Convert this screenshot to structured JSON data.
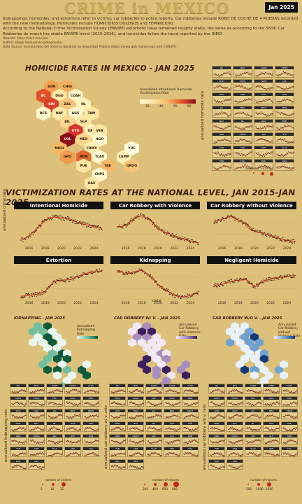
{
  "header": {
    "title": "CRIME in MEXICO",
    "date_badge": "Jan 2025"
  },
  "intro": {
    "line1": "Kidnappings, homicides, and extortions refer to victims; car robberies to police reports. Car robberies include ROBO DE COCHE DE 4 RUEDAS recorded with the new methodology. Homicides include HOMICIDIOS DOLOSOS and FEMINICIDIO.",
    "line2": "According to the National Crime Victimization Survey (ENVIPE) extortions have remained roughly stabe, the same as according to the SNSP. Car Robberies do match the stable ENVIPE trend (2015-2016), and homicides follow the trend reported by the INEGI",
    "website": "Website: https://elcri.men/en/",
    "author": "Author: Diego Valle-Jones @diegovalle",
    "source": "Data Source: Secretariado del Sistema Nacional de Seguridad Pública (https://www.gob.mx/sesnsp) and CONAPO"
  },
  "homicide_map": {
    "title": "HOMICIDE RATES IN MEXICO - JAN 2025",
    "legend_title": "Annualized Intentional Homicide Victimization Rate",
    "legend_ticks": [
      "20",
      "40",
      "60",
      "80"
    ],
    "states": [
      {
        "code": "SON",
        "color": "#f2a050"
      },
      {
        "code": "CHIH",
        "color": "#f2b060"
      },
      {
        "code": "BC",
        "color": "#e0502a"
      },
      {
        "code": "DGO",
        "color": "#fce9a8"
      },
      {
        "code": "COAH",
        "color": "#fef5c8"
      },
      {
        "code": "SIN",
        "color": "#d8422a"
      },
      {
        "code": "ZAC",
        "color": "#f6c478"
      },
      {
        "code": "NL",
        "color": "#fdf0b8"
      },
      {
        "code": "BCS",
        "color": "#fef6cc"
      },
      {
        "code": "NAY",
        "color": "#fde9a8"
      },
      {
        "code": "AGS",
        "color": "#fef6cc"
      },
      {
        "code": "SLP",
        "color": "#fce6a4"
      },
      {
        "code": "TAM",
        "color": "#fce6a4"
      },
      {
        "code": "JAL",
        "color": "#f9d68c"
      },
      {
        "code": "GTO",
        "color": "#d8342a"
      },
      {
        "code": "QRO",
        "color": "#fdf0b8"
      },
      {
        "code": "VER",
        "color": "#fce6a4"
      },
      {
        "code": "COL",
        "color": "#8c0d1a"
      },
      {
        "code": "MEX",
        "color": "#f9d68c"
      },
      {
        "code": "HGO",
        "color": "#fef6cc"
      },
      {
        "code": "MICH",
        "color": "#f6b866"
      },
      {
        "code": "CDMX",
        "color": "#fdeeb4"
      },
      {
        "code": "TLAX",
        "color": "#fef6cc"
      },
      {
        "code": "CAMP",
        "color": "#fdeeb4"
      },
      {
        "code": "YUC",
        "color": "#fffadc"
      },
      {
        "code": "GRO",
        "color": "#f29c50"
      },
      {
        "code": "MOR",
        "color": "#e26a30"
      },
      {
        "code": "PUE",
        "color": "#fce6a4"
      },
      {
        "code": "TAB",
        "color": "#f6b866"
      },
      {
        "code": "QROO",
        "color": "#f6c478"
      },
      {
        "code": "CHPS",
        "color": "#fef6cc"
      },
      {
        "code": "OAX",
        "color": "#fce6a4"
      }
    ]
  },
  "homicide_small_multiples": {
    "ylabel": "annualized homicide rate",
    "states": [
      "BC",
      "BCS",
      "CAMP",
      "CDMX",
      "CHIH",
      "CHPS",
      "COAH",
      "COL",
      "DGO",
      "GRO",
      "GTO",
      "HGO",
      "JAL",
      "MEX",
      "MICH",
      "MOR",
      "NAY",
      "NL",
      "OAX",
      "PUE",
      "QRO",
      "QROO",
      "SIN",
      "SLP",
      "SON",
      "TAB",
      "TAM",
      "TLAX",
      "VER",
      "YUC",
      "ZAC",
      "AGS"
    ],
    "size_legend_title": "number of victims"
  },
  "national": {
    "title": "VICTIMIZATION RATES AT THE NATIONAL LEVEL, JAN 2015-JAN 2025",
    "ylabel": "annualized crime rate",
    "xlabel": "date",
    "x_ticks": [
      "2016",
      "2018",
      "2020",
      "2022",
      "2024"
    ]
  },
  "kidnap_map": {
    "title": "KIDNAPPING - JAN 2025",
    "legend_title": "Annualized Kidnapping Rate",
    "ylabel": "annualized kidnapping rate",
    "size_legend_title": "number of victims",
    "size_ticks": [
      "5",
      "10",
      "15"
    ]
  },
  "carv_map": {
    "title": "CAR ROBBERY W/ V. - JAN 2025",
    "legend_title": "Annualized Car Robbery with Violence Rate",
    "ylabel": "annualized car robbery w/ v. rate",
    "size_legend_title": "number of reports",
    "size_ticks": [
      "200",
      "400",
      "600",
      "800"
    ]
  },
  "carnv_map": {
    "title": "CAR ROBBERY W/O V. - JAN 2025",
    "legend_title": "Annualized Car Robbery without Violence Rate",
    "ylabel": "annualized car robbery w/o v. rate",
    "size_legend_title": "number of reports",
    "size_ticks": [
      "500",
      "1000",
      "1500"
    ]
  },
  "colors": {
    "background": "#ddc07a",
    "trend": "#c0281c",
    "points": "#2a1a10",
    "kidnap_scale": [
      "#e8f6ef",
      "#6fbfa0",
      "#0d5a3c"
    ],
    "carv_scale": [
      "#f0e8f4",
      "#a78cc0",
      "#3a2060"
    ],
    "carnv_scale": [
      "#e8f0fa",
      "#6ea2d2",
      "#113a7a"
    ]
  },
  "chart_data": [
    {
      "type": "line",
      "title": "Intentional Homicide",
      "x": [
        "2015",
        "2016",
        "2017",
        "2018",
        "2019",
        "2020",
        "2021",
        "2022",
        "2023",
        "2024",
        "2025"
      ],
      "series": [
        {
          "values": [
            16.5,
            18.5,
            22.5,
            27.0,
            28.5,
            28.0,
            27.5,
            25.5,
            24.5,
            23.5,
            22.5
          ]
        }
      ]
    },
    {
      "type": "line",
      "title": "Car Robbery with Violence",
      "x": [
        "2015",
        "2016",
        "2017",
        "2018",
        "2019",
        "2020",
        "2021",
        "2022",
        "2023",
        "2024",
        "2025"
      ],
      "series": [
        {
          "values": [
            42,
            44,
            54,
            58,
            52,
            40,
            34,
            30,
            26,
            22,
            20
          ]
        }
      ]
    },
    {
      "type": "line",
      "title": "Car Robbery without Violence",
      "x": [
        "2015",
        "2016",
        "2017",
        "2018",
        "2019",
        "2020",
        "2021",
        "2022",
        "2023",
        "2024",
        "2025"
      ],
      "series": [
        {
          "values": [
            104,
            110,
            118,
            108,
            98,
            80,
            76,
            70,
            64,
            58,
            55
          ]
        }
      ]
    },
    {
      "type": "line",
      "title": "Extortion",
      "x": [
        "2015",
        "2016",
        "2017",
        "2018",
        "2019",
        "2020",
        "2021",
        "2022",
        "2023",
        "2024",
        "2025"
      ],
      "series": [
        {
          "values": [
            3.9,
            4.1,
            4.3,
            4.8,
            6.5,
            6.8,
            6.9,
            7.5,
            8.0,
            8.3,
            8.5
          ]
        }
      ]
    },
    {
      "type": "line",
      "title": "Kidnapping",
      "x": [
        "2015",
        "2016",
        "2017",
        "2018",
        "2019",
        "2020",
        "2021",
        "2022",
        "2023",
        "2024",
        "2025"
      ],
      "series": [
        {
          "values": [
            1.2,
            1.1,
            1.15,
            1.2,
            1.05,
            0.8,
            0.65,
            0.5,
            0.45,
            0.5,
            0.6
          ]
        }
      ]
    },
    {
      "type": "line",
      "title": "Negligent Homicide",
      "x": [
        "2015",
        "2016",
        "2017",
        "2018",
        "2019",
        "2020",
        "2021",
        "2022",
        "2023",
        "2024",
        "2025"
      ],
      "series": [
        {
          "values": [
            13.0,
            13.2,
            13.6,
            13.8,
            13.9,
            12.8,
            13.6,
            14.0,
            14.2,
            14.4,
            14.5
          ]
        }
      ]
    }
  ]
}
